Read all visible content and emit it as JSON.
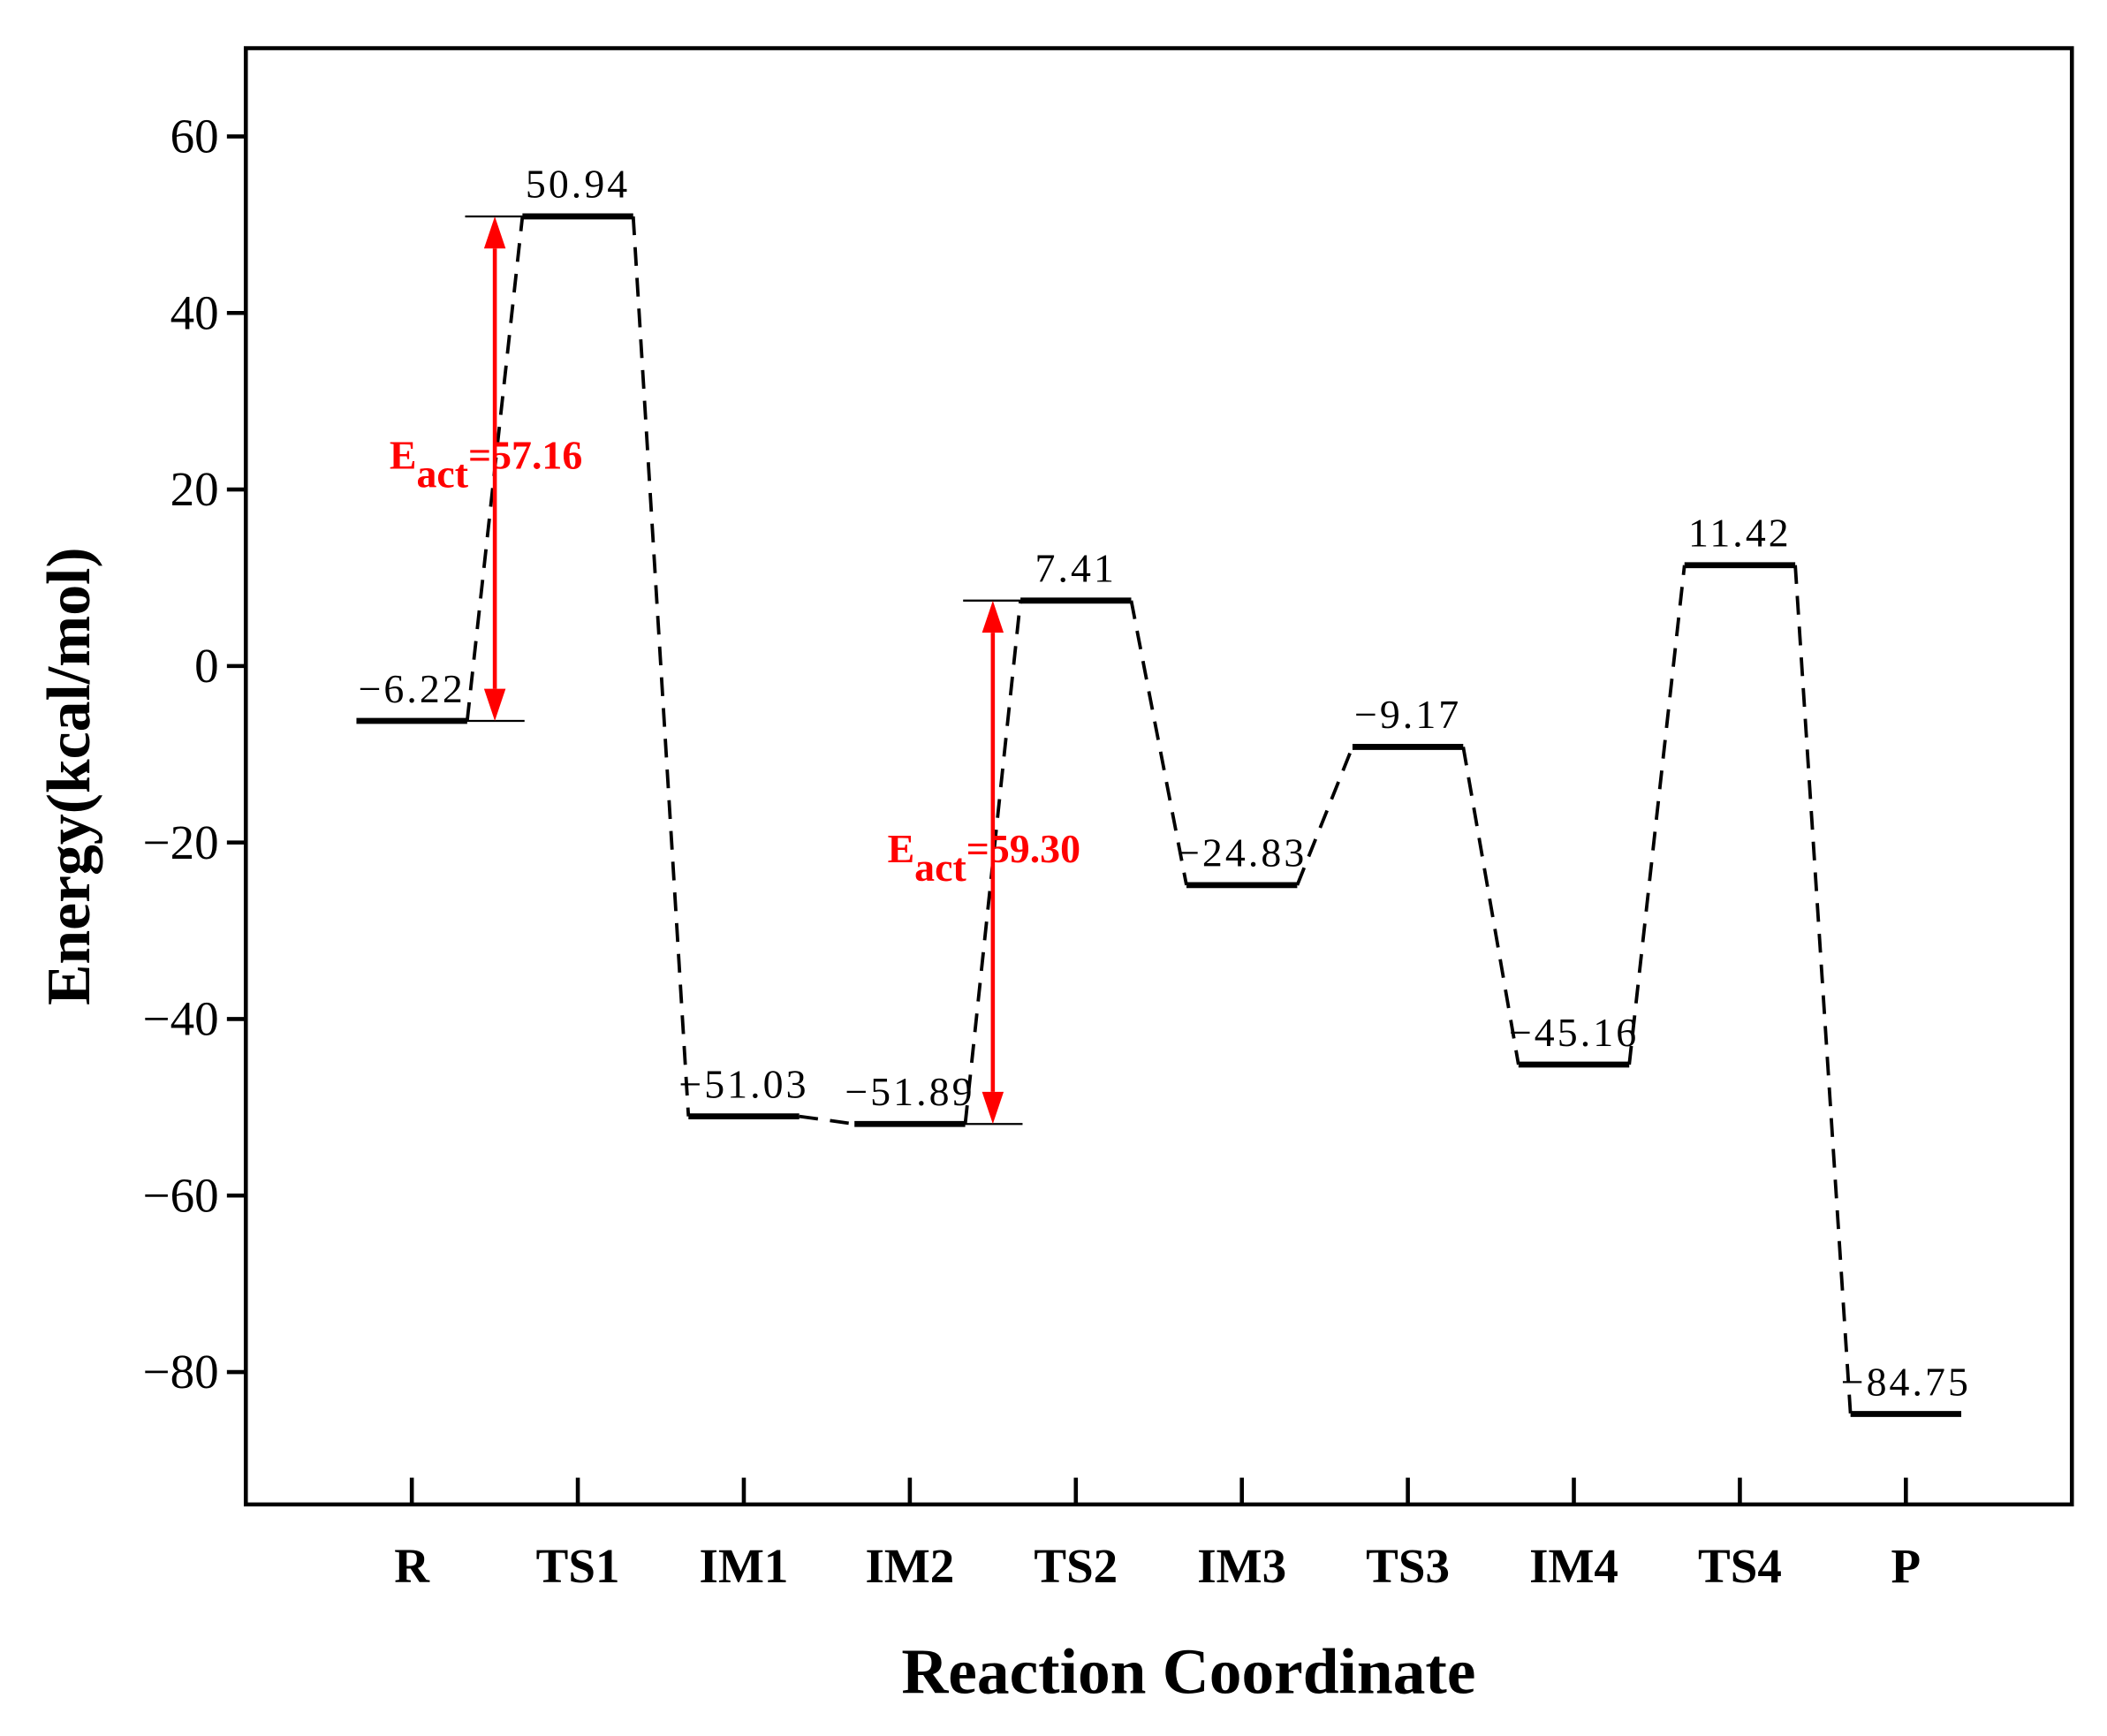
{
  "chart_data": {
    "type": "energy-profile",
    "x_label": "Reaction Coordinate",
    "y_label": "Energy(kcal/mol)",
    "categories": [
      "R",
      "TS1",
      "IM1",
      "IM2",
      "TS2",
      "IM3",
      "TS3",
      "IM4",
      "TS4",
      "P"
    ],
    "values": [
      -6.22,
      50.94,
      -51.03,
      -51.89,
      7.41,
      -24.83,
      -9.17,
      -45.16,
      11.42,
      -84.75
    ],
    "value_labels": [
      "−6.22",
      "50.94",
      "−51.03",
      "−51.89",
      "7.41",
      "−24.83",
      "−9.17",
      "−45.16",
      "11.42",
      "−84.75"
    ],
    "color": "#000000",
    "ylim": [
      -95,
      70
    ],
    "yticks": [
      {
        "value": -80,
        "label": "−80"
      },
      {
        "value": -60,
        "label": "−60"
      },
      {
        "value": -40,
        "label": "−40"
      },
      {
        "value": -20,
        "label": "−20"
      },
      0,
      20,
      40,
      60
    ],
    "annotations": [
      {
        "from": "R",
        "to": "TS1",
        "symbol": "E",
        "subscript": "act",
        "text": "=57.16",
        "color": "#ff0000"
      },
      {
        "from": "IM2",
        "to": "TS2",
        "symbol": "E",
        "subscript": "act",
        "text": "=59.30",
        "color": "#ff0000"
      }
    ]
  }
}
